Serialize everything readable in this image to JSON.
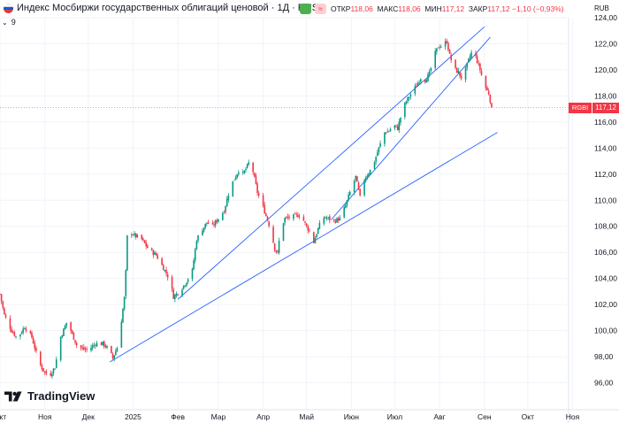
{
  "header": {
    "title": "Индекс Мосбиржи государственных облигаций ценовой · 1Д · RUS",
    "open_label": "ОТКР",
    "open_value": "118,06",
    "high_label": "МАКС",
    "high_value": "118,06",
    "low_label": "МИН",
    "low_value": "117,12",
    "close_label": "ЗАКР",
    "close_value": "117,12",
    "change": "−1,10 (−0,93%)",
    "currency": "RUB",
    "indicator_count": "9",
    "approx_sign": "≈"
  },
  "logo": {
    "text": "TradingView"
  },
  "price_label": {
    "ticker": "RGBI",
    "value": "117,12"
  },
  "colors": {
    "up": "#089981",
    "down": "#f23645",
    "trendline": "#2962ff",
    "grid": "#f0f3fa"
  },
  "chart_data": {
    "type": "candlestick",
    "title": "Индекс Мосбиржи государственных облигаций ценовой",
    "y_range": [
      94,
      124
    ],
    "y_ticks": [
      96,
      98,
      100,
      102,
      104,
      106,
      108,
      110,
      112,
      114,
      116,
      118,
      120,
      122,
      124
    ],
    "y_tick_labels": [
      "96,00",
      "98,00",
      "100,00",
      "102,00",
      "104,00",
      "106,00",
      "108,00",
      "110,00",
      "112,00",
      "114,00",
      "116,00",
      "118,00",
      "120,00",
      "122,00",
      "124,00"
    ],
    "x_range": [
      0,
      392
    ],
    "x_ticks": [
      {
        "day": 0,
        "label": "Окт"
      },
      {
        "day": 31,
        "label": "Ноя"
      },
      {
        "day": 61,
        "label": "Дек"
      },
      {
        "day": 92,
        "label": "2025"
      },
      {
        "day": 123,
        "label": "Фев"
      },
      {
        "day": 151,
        "label": "Мар"
      },
      {
        "day": 182,
        "label": "Апр"
      },
      {
        "day": 212,
        "label": "Май"
      },
      {
        "day": 243,
        "label": "Июн"
      },
      {
        "day": 273,
        "label": "Июл"
      },
      {
        "day": 304,
        "label": "Авг"
      },
      {
        "day": 335,
        "label": "Сен"
      },
      {
        "day": 365,
        "label": "Окт"
      },
      {
        "day": 396,
        "label": "Ноя"
      }
    ],
    "last_close": 117.12,
    "keypoints": [
      [
        0,
        102.8
      ],
      [
        3,
        101.2
      ],
      [
        8,
        100.0
      ],
      [
        12,
        99.4
      ],
      [
        17,
        100.3
      ],
      [
        22,
        99.5
      ],
      [
        27,
        97.5
      ],
      [
        31,
        96.8
      ],
      [
        34,
        96.5
      ],
      [
        38,
        97.2
      ],
      [
        42,
        99.5
      ],
      [
        46,
        100.6
      ],
      [
        49,
        100.0
      ],
      [
        53,
        98.9
      ],
      [
        57,
        98.6
      ],
      [
        61,
        98.5
      ],
      [
        66,
        99.0
      ],
      [
        71,
        99.0
      ],
      [
        75,
        98.6
      ],
      [
        78,
        97.9
      ],
      [
        81,
        98.7
      ],
      [
        84,
        100.8
      ],
      [
        86,
        102.5
      ],
      [
        87,
        104.5
      ],
      [
        88,
        107.2
      ],
      [
        90,
        107.6
      ],
      [
        93,
        107.3
      ],
      [
        98,
        107.0
      ],
      [
        103,
        106.2
      ],
      [
        108,
        105.8
      ],
      [
        113,
        104.8
      ],
      [
        117,
        104.0
      ],
      [
        120,
        102.6
      ],
      [
        124,
        103.0
      ],
      [
        128,
        103.6
      ],
      [
        133,
        104.6
      ],
      [
        136,
        107.0
      ],
      [
        139,
        107.6
      ],
      [
        143,
        108.3
      ],
      [
        147,
        108.0
      ],
      [
        151,
        108.6
      ],
      [
        155,
        109.2
      ],
      [
        158,
        110.5
      ],
      [
        161,
        111.4
      ],
      [
        165,
        112.3
      ],
      [
        168,
        112.0
      ],
      [
        171,
        112.6
      ],
      [
        173,
        113.1
      ],
      [
        175,
        112.2
      ],
      [
        178,
        110.6
      ],
      [
        181,
        109.8
      ],
      [
        184,
        108.8
      ],
      [
        187,
        107.8
      ],
      [
        190,
        106.3
      ],
      [
        192,
        105.9
      ],
      [
        194,
        107.8
      ],
      [
        197,
        108.6
      ],
      [
        201,
        108.7
      ],
      [
        204,
        108.8
      ],
      [
        208,
        108.9
      ],
      [
        211,
        108.2
      ],
      [
        214,
        107.6
      ],
      [
        217,
        106.8
      ],
      [
        220,
        107.8
      ],
      [
        223,
        108.7
      ],
      [
        227,
        108.6
      ],
      [
        231,
        108.4
      ],
      [
        235,
        108.6
      ],
      [
        239,
        109.6
      ],
      [
        242,
        110.6
      ],
      [
        246,
        111.8
      ],
      [
        249,
        110.2
      ],
      [
        252,
        111.6
      ],
      [
        256,
        112.3
      ],
      [
        259,
        113.0
      ],
      [
        262,
        114.0
      ],
      [
        266,
        115.2
      ],
      [
        269,
        115.3
      ],
      [
        272,
        115.8
      ],
      [
        275,
        115.5
      ],
      [
        278,
        116.8
      ],
      [
        281,
        117.6
      ],
      [
        285,
        118.3
      ],
      [
        288,
        118.8
      ],
      [
        291,
        119.4
      ],
      [
        294,
        119.2
      ],
      [
        297,
        119.7
      ],
      [
        300,
        121.0
      ],
      [
        303,
        121.8
      ],
      [
        306,
        121.8
      ],
      [
        309,
        122.2
      ],
      [
        311,
        121.1
      ],
      [
        314,
        120.1
      ],
      [
        317,
        119.8
      ],
      [
        320,
        119.2
      ],
      [
        323,
        120.4
      ],
      [
        326,
        121.3
      ],
      [
        329,
        121.0
      ],
      [
        332,
        120.0
      ],
      [
        335,
        118.8
      ],
      [
        338,
        118.2
      ],
      [
        340,
        117.12
      ]
    ]
  },
  "trendlines": [
    {
      "from": [
        76,
        97.6
      ],
      "to": [
        344,
        115.2
      ]
    },
    {
      "from": [
        123,
        102.4
      ],
      "to": [
        335,
        123.3
      ]
    },
    {
      "from": [
        229,
        108.5
      ],
      "to": [
        339,
        122.5
      ]
    }
  ]
}
